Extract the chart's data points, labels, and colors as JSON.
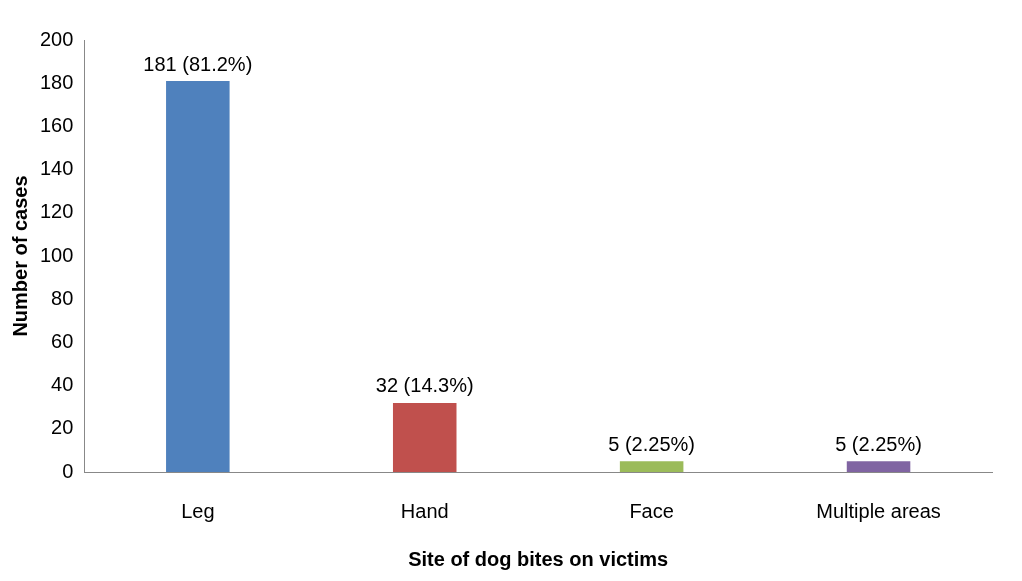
{
  "chart_data": {
    "type": "bar",
    "xlabel": "Site of dog bites on victims",
    "ylabel": "Number of cases",
    "categories": [
      "Leg",
      "Hand",
      "Face",
      "Multiple areas"
    ],
    "values": [
      181,
      32,
      5,
      5
    ],
    "colors": [
      "#4f81bd",
      "#c0504d",
      "#9bbb59",
      "#8064a2"
    ],
    "value_labels": [
      "181 (81.2%)",
      "32 (14.3%)",
      "5 (2.25%)",
      "5 (2.25%)"
    ],
    "ylim": [
      0,
      200
    ],
    "yticks": [
      0,
      20,
      40,
      60,
      80,
      100,
      120,
      140,
      160,
      180,
      200
    ],
    "grid": false,
    "legend": false
  }
}
